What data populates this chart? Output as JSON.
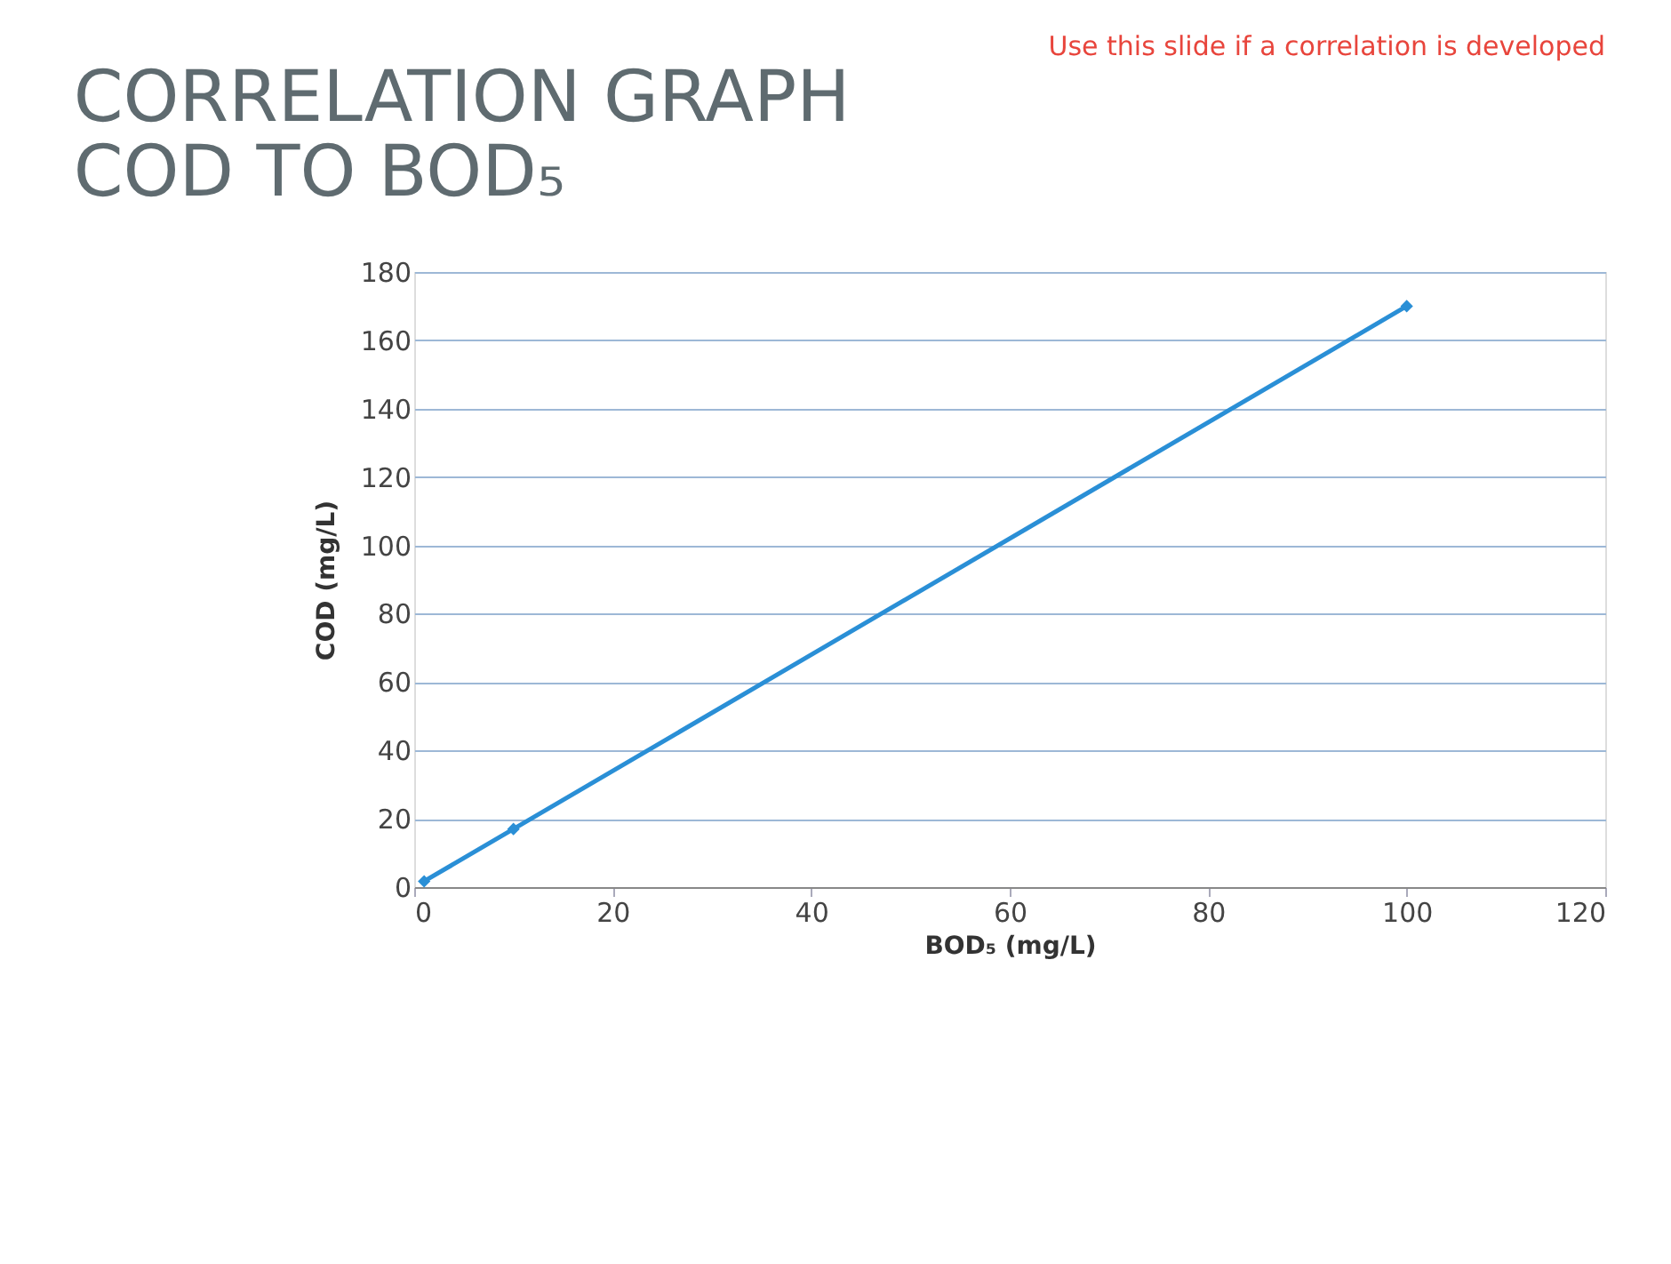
{
  "chart_data": {
    "type": "line",
    "title": [
      "CORRELATION GRAPH",
      "COD TO BOD₅"
    ],
    "xlabel": "BOD₅ (mg/L)",
    "ylabel": "COD (mg/L)",
    "annotations": [
      "Use this slide if a correlation is developed"
    ],
    "x": [
      1,
      10,
      100
    ],
    "series": [
      {
        "color": "#2a8fd6",
        "values": [
          1.7,
          17,
          170
        ]
      }
    ],
    "xlim": [
      0,
      120
    ],
    "xticks": [
      0,
      20,
      40,
      60,
      80,
      100,
      120
    ],
    "ylim": [
      0,
      180
    ],
    "yticks": [
      0,
      20,
      40,
      60,
      80,
      100,
      120,
      140,
      160,
      180
    ],
    "grid": "y",
    "marker": "diamond",
    "line_style": "solid",
    "legend": false
  }
}
